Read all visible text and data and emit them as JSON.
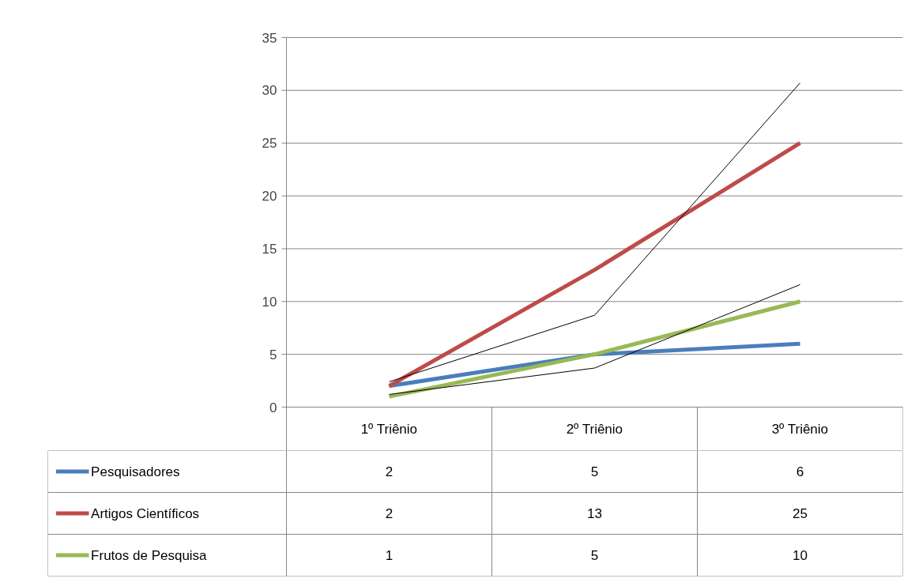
{
  "chart_data": {
    "type": "line",
    "categories": [
      "1º Triênio",
      "2º Triênio",
      "3º Triênio"
    ],
    "series": [
      {
        "name": "Pesquisadores",
        "color": "#4a7ebb",
        "values": [
          2,
          5,
          6
        ]
      },
      {
        "name": "Artigos Científicos",
        "color": "#be4b48",
        "values": [
          2,
          13,
          25
        ]
      },
      {
        "name": "Frutos de Pesquisa",
        "color": "#98b954",
        "values": [
          1,
          5,
          10
        ]
      },
      {
        "type": "line",
        "color": "#000000",
        "values": [
          2.4,
          8.7,
          30.7
        ],
        "value_labels": [
          null,
          null,
          null
        ]
      },
      {
        "type": "line",
        "color": "#000000",
        "values": [
          1.2,
          3.7,
          11.6
        ],
        "value_labels": [
          null,
          null,
          null
        ]
      }
    ],
    "legend": "bottom",
    "ylim": [
      0,
      35
    ],
    "yticks": [
      0,
      5,
      10,
      15,
      20,
      25,
      30,
      35
    ],
    "grid": "y",
    "data_labels": true
  }
}
